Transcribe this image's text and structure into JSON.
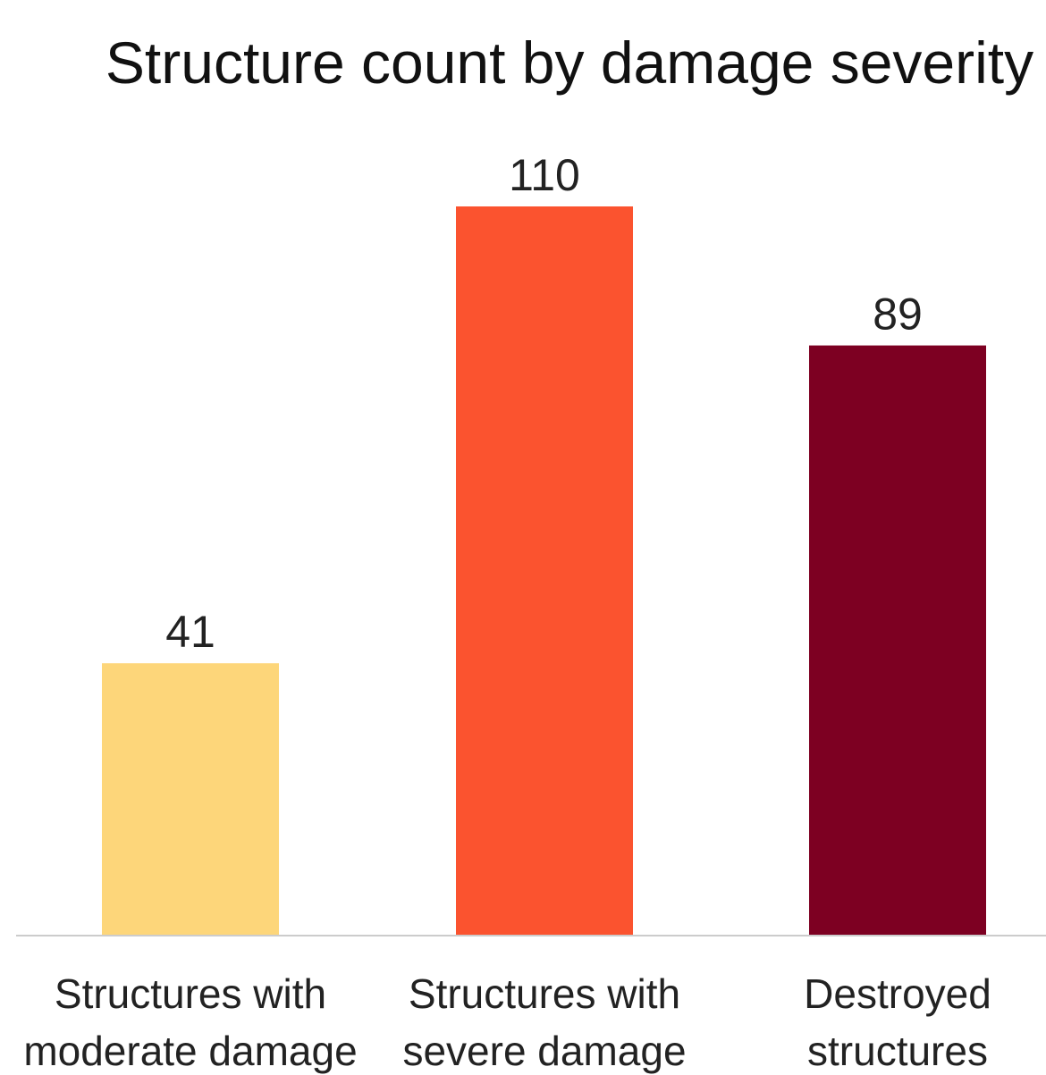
{
  "chart_data": {
    "type": "bar",
    "title": "Structure count by damage severity",
    "categories": [
      [
        "Structures with",
        "moderate damage"
      ],
      [
        "Structures with",
        "severe damage"
      ],
      [
        "Destroyed",
        "structures"
      ]
    ],
    "values": [
      41,
      110,
      89
    ],
    "data_labels": [
      "41",
      "110",
      "89"
    ],
    "colors": [
      "#FDD67A",
      "#FB532F",
      "#7D0022"
    ],
    "baseline_color": "#CCCCCC",
    "xlabel": "",
    "ylabel": "",
    "ylim": [
      0,
      110
    ],
    "grid": false,
    "legend": "none"
  }
}
